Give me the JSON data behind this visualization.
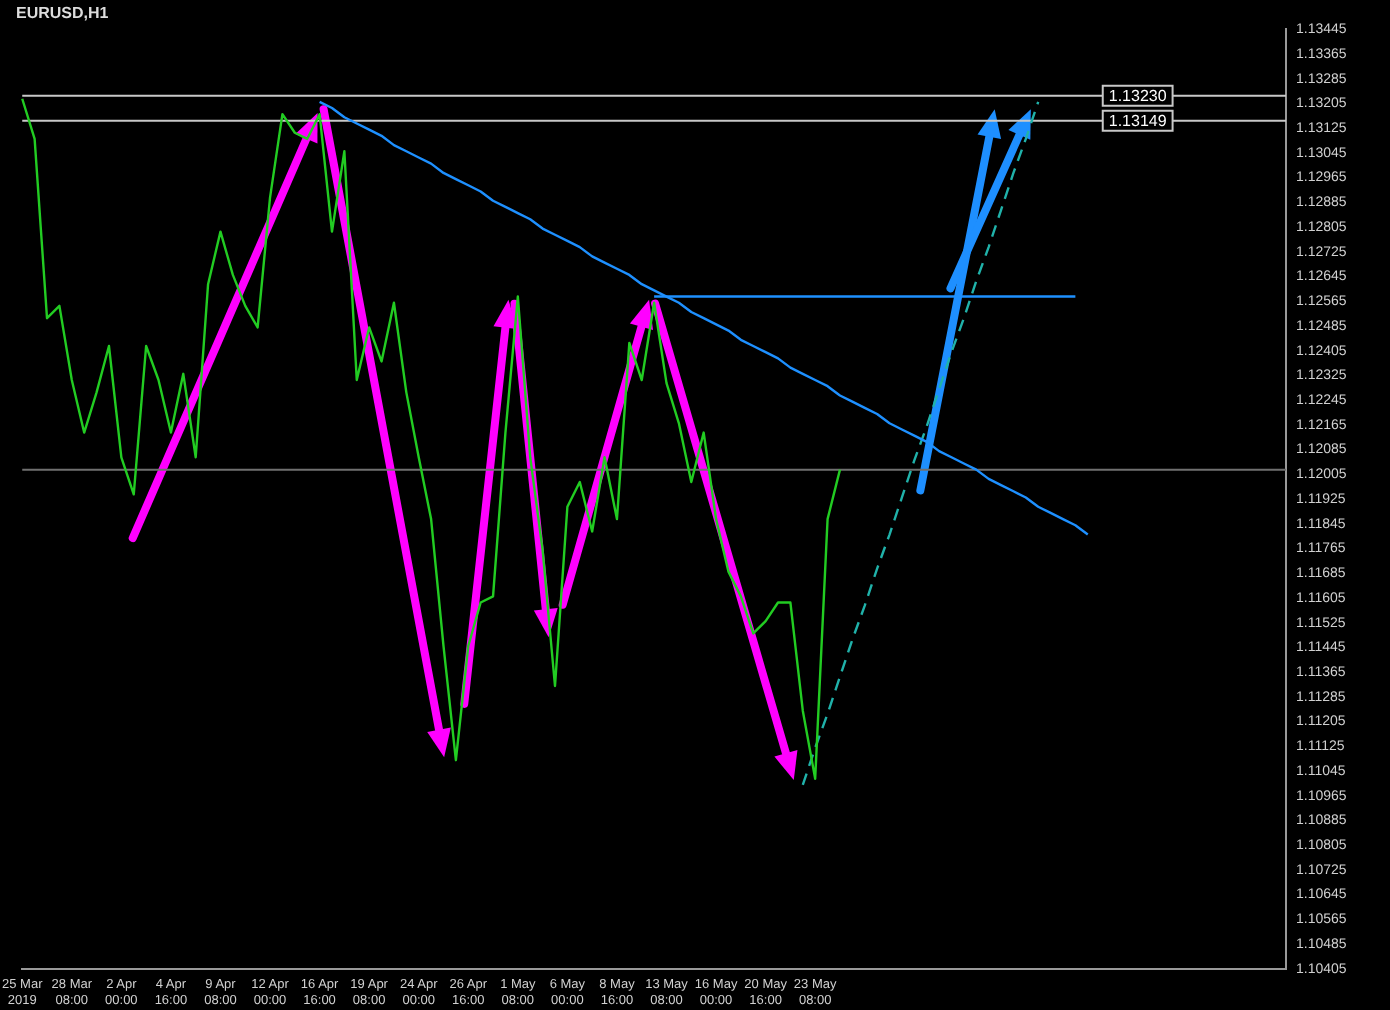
{
  "chart_data": {
    "type": "line",
    "title": "EURUSD,H1",
    "categories": [
      "25 Mar 2019",
      null,
      null,
      null,
      "28 Mar 08:00",
      null,
      null,
      null,
      "2 Apr 00:00",
      null,
      null,
      null,
      "4 Apr 16:00",
      null,
      null,
      null,
      "9 Apr 08:00",
      null,
      null,
      null,
      "12 Apr 00:00",
      null,
      null,
      null,
      "16 Apr 16:00",
      null,
      null,
      null,
      "19 Apr 08:00",
      null,
      null,
      null,
      "24 Apr 00:00",
      null,
      null,
      null,
      "26 Apr 16:00",
      null,
      null,
      null,
      "1 May 08:00",
      null,
      null,
      null,
      "6 May 00:00",
      null,
      null,
      null,
      "8 May 16:00",
      null,
      null,
      null,
      "13 May 08:00",
      null,
      null,
      null,
      "16 May 00:00",
      null,
      null,
      null,
      "20 May 16:00",
      null,
      null,
      null,
      "23 May 08:00",
      null,
      null,
      null,
      null,
      null,
      null,
      null,
      null,
      null,
      null,
      null,
      null,
      null,
      null,
      null,
      null,
      null,
      null,
      null,
      null,
      null,
      null,
      null,
      null,
      null,
      null,
      null,
      null,
      null,
      null,
      null,
      null,
      null,
      null,
      null,
      null,
      null,
      null
    ],
    "ylim": [
      1.10405,
      1.13445
    ],
    "yticks": [
      1.10405,
      1.10485,
      1.10565,
      1.10645,
      1.10725,
      1.10805,
      1.10885,
      1.10965,
      1.11045,
      1.11125,
      1.11205,
      1.11285,
      1.11365,
      1.11445,
      1.11525,
      1.11605,
      1.11685,
      1.11765,
      1.11845,
      1.11925,
      1.12005,
      1.12085,
      1.12165,
      1.12245,
      1.12325,
      1.12405,
      1.12485,
      1.12565,
      1.12645,
      1.12725,
      1.12805,
      1.12885,
      1.12965,
      1.13045,
      1.13125,
      1.13205,
      1.13285,
      1.13365,
      1.13445
    ],
    "marker": "none",
    "series": [
      {
        "color": "#22cc22",
        "values": [
          1.1322,
          1.1309,
          1.1251,
          1.1255,
          1.1231,
          1.1214,
          1.1227,
          1.1242,
          1.1206,
          1.1194,
          1.1242,
          1.1231,
          1.1214,
          1.1233,
          1.1206,
          1.1262,
          1.1279,
          1.1265,
          1.1255,
          1.1248,
          1.129,
          1.1317,
          1.1311,
          1.1309,
          1.1317,
          1.1279,
          1.1305,
          1.1231,
          1.1248,
          1.1237,
          1.1256,
          1.1227,
          1.1206,
          1.1186,
          1.1145,
          1.1108,
          1.1145,
          1.1159,
          1.1161,
          1.1214,
          1.1258,
          1.1206,
          1.1176,
          1.1132,
          1.119,
          1.1198,
          1.1182,
          1.1206,
          1.1186,
          1.1243,
          1.1231,
          1.1256,
          1.123,
          1.1217,
          1.1198,
          1.1214,
          1.1186,
          1.1169,
          1.1161,
          1.1149,
          1.1153,
          1.1159,
          1.1159,
          1.1124,
          1.1102,
          1.1186,
          1.1202,
          null,
          null,
          null,
          null,
          null,
          null,
          null,
          null,
          null,
          null,
          null,
          null,
          null,
          null,
          null,
          null,
          null,
          null,
          null,
          null,
          null,
          null,
          null,
          null,
          null,
          null,
          null,
          null,
          null,
          null,
          null,
          null,
          null,
          null,
          null,
          null
        ]
      },
      {
        "type": "line",
        "color": "#1e90ff",
        "values": [
          null,
          null,
          null,
          null,
          null,
          null,
          null,
          null,
          null,
          null,
          null,
          null,
          null,
          null,
          null,
          null,
          null,
          null,
          null,
          null,
          null,
          null,
          null,
          null,
          1.1321,
          1.1319,
          1.1316,
          1.1314,
          1.1312,
          1.131,
          1.1307,
          1.1305,
          1.1303,
          1.1301,
          1.1298,
          1.1296,
          1.1294,
          1.1292,
          1.1289,
          1.1287,
          1.1285,
          1.1283,
          1.128,
          1.1278,
          1.1276,
          1.1274,
          1.1271,
          1.1269,
          1.1267,
          1.1265,
          1.1262,
          1.126,
          1.1258,
          1.1256,
          1.1253,
          1.1251,
          1.1249,
          1.1247,
          1.1244,
          1.1242,
          1.124,
          1.1238,
          1.1235,
          1.1233,
          1.1231,
          1.1229,
          1.1226,
          1.1224,
          1.1222,
          1.122,
          1.1217,
          1.1215,
          1.1213,
          1.1211,
          1.1208,
          1.1206,
          1.1204,
          1.1202,
          1.1199,
          1.1197,
          1.1195,
          1.1193,
          1.119,
          1.1188,
          1.1186,
          1.1184,
          1.1181,
          null,
          null,
          null,
          null,
          null,
          null,
          null,
          null,
          null,
          null,
          null,
          null,
          null,
          null,
          null,
          null
        ]
      },
      {
        "type": "line",
        "color": "#1e90ff",
        "values": [
          null,
          null,
          null,
          null,
          null,
          null,
          null,
          null,
          null,
          null,
          null,
          null,
          null,
          null,
          null,
          null,
          null,
          null,
          null,
          null,
          null,
          null,
          null,
          null,
          null,
          null,
          null,
          null,
          null,
          null,
          null,
          null,
          null,
          null,
          null,
          null,
          null,
          null,
          null,
          null,
          null,
          null,
          null,
          null,
          null,
          null,
          null,
          null,
          null,
          null,
          null,
          1.1258,
          1.1258,
          1.1258,
          1.1258,
          1.1258,
          1.1258,
          1.1258,
          1.1258,
          1.1258,
          1.1258,
          1.1258,
          1.1258,
          1.1258,
          1.1258,
          1.1258,
          1.1258,
          1.1258,
          1.1258,
          1.1258,
          1.1258,
          1.1258,
          1.1258,
          1.1258,
          1.1258,
          1.1258,
          1.1258,
          1.1258,
          1.1258,
          1.1258,
          1.1258,
          1.1258,
          1.1258,
          1.1258,
          1.1258,
          1.1258,
          null,
          null,
          null,
          null,
          null,
          null,
          null,
          null,
          null,
          null,
          null,
          null,
          null,
          null,
          null,
          null,
          null
        ]
      },
      {
        "type": "line",
        "color": "#20b2aa",
        "line_style": "dashed",
        "values": [
          null,
          null,
          null,
          null,
          null,
          null,
          null,
          null,
          null,
          null,
          null,
          null,
          null,
          null,
          null,
          null,
          null,
          null,
          null,
          null,
          null,
          null,
          null,
          null,
          null,
          null,
          null,
          null,
          null,
          null,
          null,
          null,
          null,
          null,
          null,
          null,
          null,
          null,
          null,
          null,
          null,
          null,
          null,
          null,
          null,
          null,
          null,
          null,
          null,
          null,
          null,
          null,
          null,
          null,
          null,
          null,
          null,
          null,
          null,
          null,
          null,
          null,
          null,
          1.11,
          1.1112,
          1.1123,
          1.1135,
          1.1147,
          1.1158,
          1.117,
          1.1181,
          1.1193,
          1.1205,
          1.1216,
          1.1228,
          1.124,
          1.1251,
          1.1263,
          1.1274,
          1.1286,
          1.1298,
          1.1309,
          1.1321,
          null,
          null,
          null,
          null,
          null,
          null,
          null,
          null,
          null,
          null,
          null,
          null,
          null,
          null,
          null,
          null,
          null,
          null,
          null,
          null
        ]
      }
    ],
    "ref_lines": [
      {
        "axis": "y",
        "value": 1.1323,
        "label": "1.13230",
        "color": "#c8c8c8"
      },
      {
        "axis": "y",
        "value": 1.13149,
        "label": "1.13149",
        "color": "#c8c8c8"
      },
      {
        "axis": "y",
        "value": 1.1202,
        "color": "#707070"
      }
    ]
  }
}
